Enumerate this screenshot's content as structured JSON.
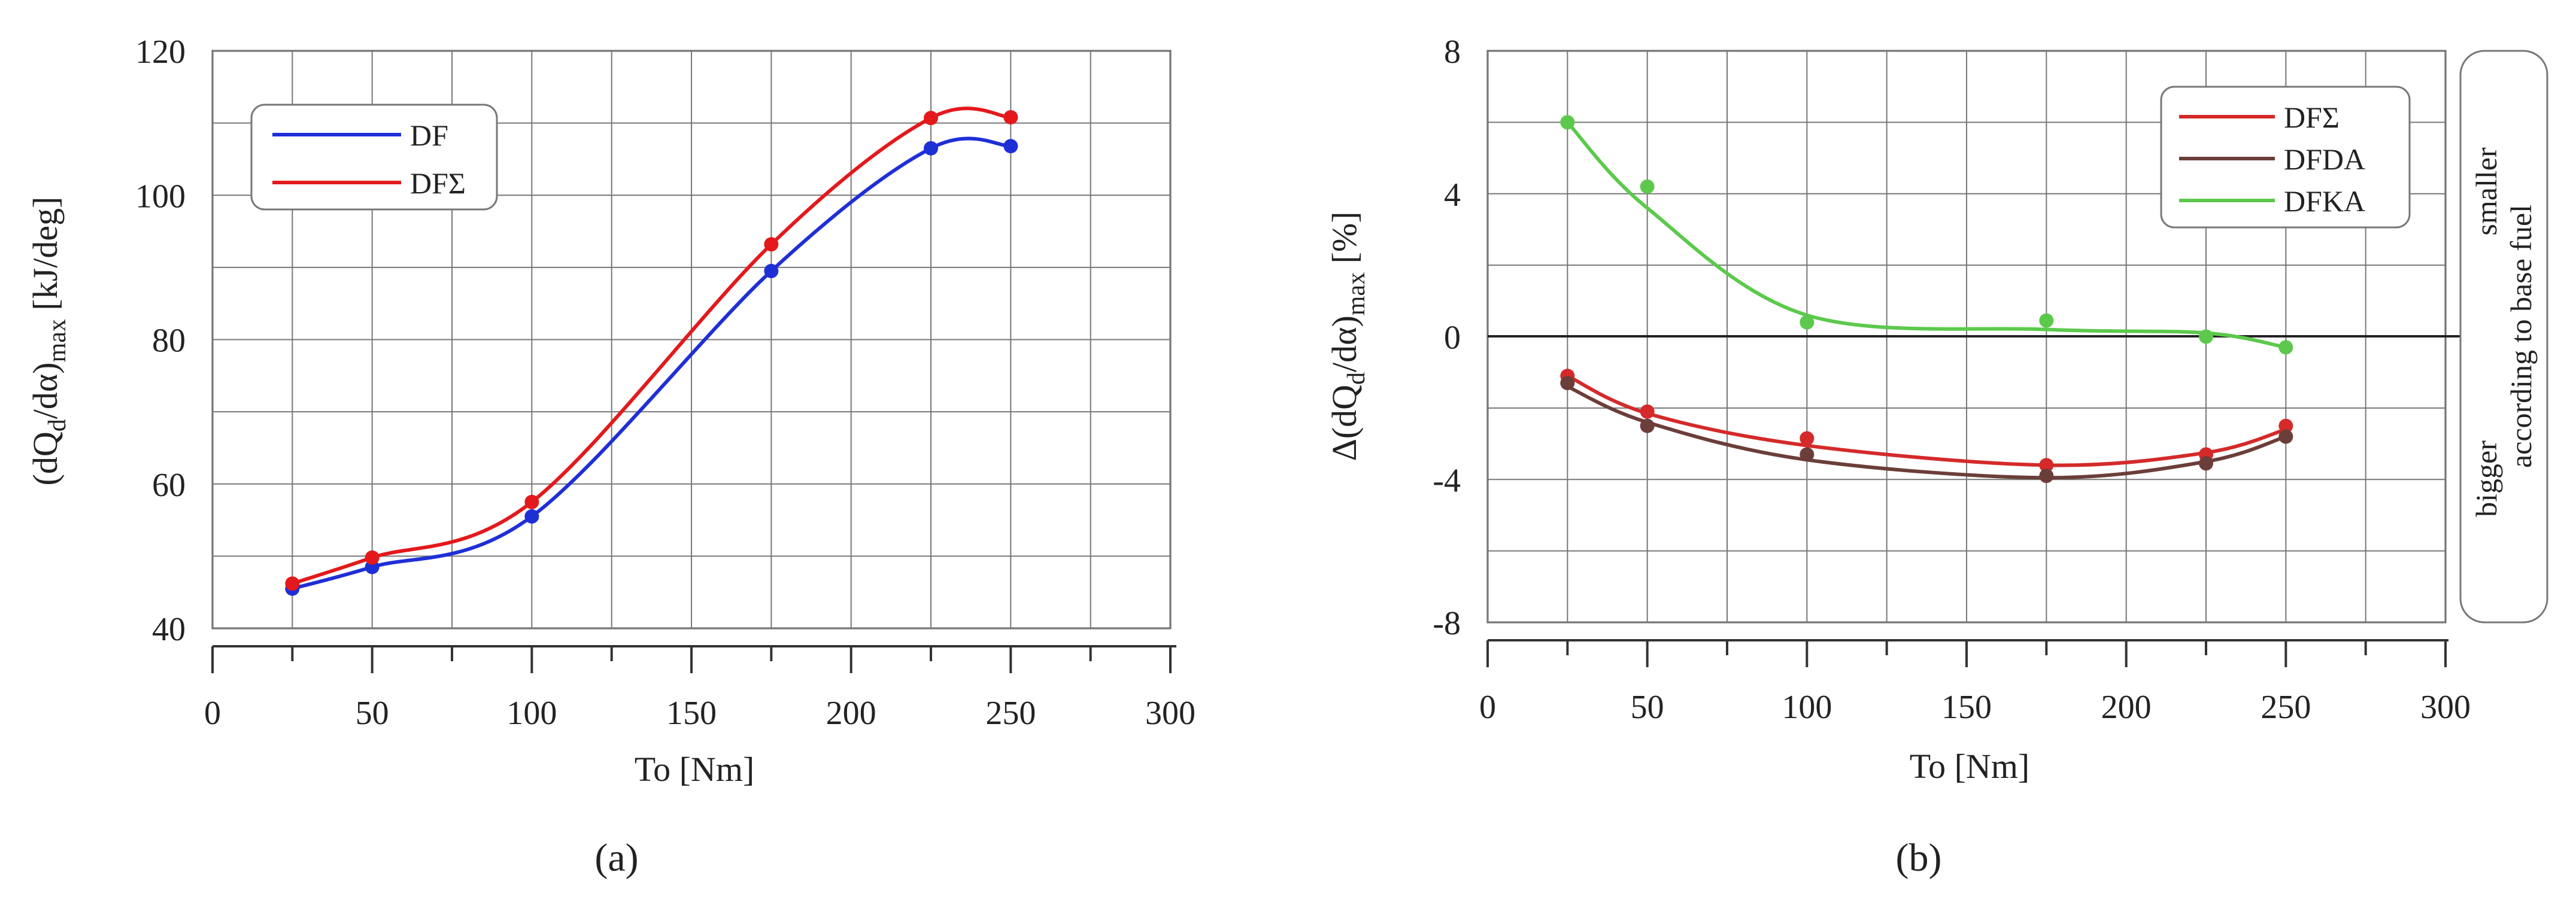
{
  "captions": [
    "(a)",
    "(b)"
  ],
  "chart_data": [
    {
      "type": "line",
      "xlabel": "To [Nm]",
      "ylabel": "(dQd/dα)max [kJ/deg]",
      "xlim": [
        0,
        300
      ],
      "ylim": [
        40,
        120
      ],
      "xticks": [
        "0",
        "50",
        "100",
        "150",
        "200",
        "250",
        "300"
      ],
      "yticks": [
        "40",
        "60",
        "80",
        "100",
        "120"
      ],
      "grid": true,
      "legend_position": "top-left",
      "x": [
        25,
        50,
        100,
        175,
        225,
        250
      ],
      "series": [
        {
          "name": "DF",
          "color": "#1f2fd6",
          "values": [
            45.5,
            48.5,
            55.5,
            89.5,
            106.5,
            106.8
          ]
        },
        {
          "name": "DFΣ",
          "color": "#e3191c",
          "values": [
            46.2,
            49.8,
            57.5,
            93.2,
            110.7,
            110.8
          ]
        }
      ]
    },
    {
      "type": "scatter",
      "xlabel": "To [Nm]",
      "ylabel": "Δ(dQd/dα)max [%]",
      "xlim": [
        0,
        300
      ],
      "ylim": [
        -8,
        8
      ],
      "xticks": [
        "0",
        "50",
        "100",
        "150",
        "200",
        "250",
        "300"
      ],
      "yticks": [
        "-8",
        "-4",
        "0",
        "4",
        "8"
      ],
      "grid": true,
      "legend_position": "top-right",
      "x": [
        25,
        50,
        100,
        175,
        225,
        250
      ],
      "series": [
        {
          "name": "DFΣ",
          "color": "#d42a2a",
          "values": [
            -1.1,
            -2.1,
            -2.85,
            -3.6,
            -3.3,
            -2.5
          ],
          "fit": [
            -1.1,
            -2.15,
            -3.05,
            -3.6,
            -3.25,
            -2.6
          ]
        },
        {
          "name": "DFDA",
          "color": "#6b3e3a",
          "values": [
            -1.3,
            -2.5,
            -3.3,
            -3.9,
            -3.55,
            -2.8
          ],
          "fit": [
            -1.4,
            -2.4,
            -3.45,
            -3.95,
            -3.5,
            -2.8
          ]
        },
        {
          "name": "DFKA",
          "color": "#5cc94c",
          "values": [
            6.0,
            4.2,
            0.4,
            0.45,
            0.0,
            -0.3
          ],
          "fit": [
            6.0,
            3.6,
            0.6,
            0.2,
            0.1,
            -0.3
          ]
        }
      ],
      "side_labels": {
        "top": "smaller",
        "bottom": "bigger",
        "middle": "according to base fuel"
      }
    }
  ]
}
